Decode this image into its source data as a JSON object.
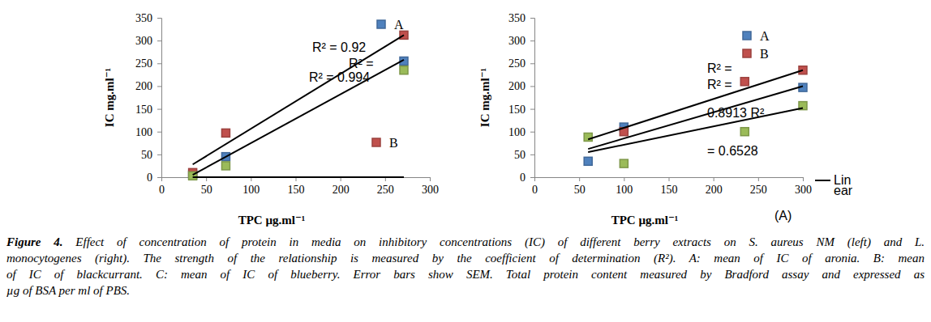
{
  "chart_data": [
    {
      "type": "scatter",
      "xlabel": "TPC µg.ml⁻¹",
      "ylabel": "IC mg.ml⁻¹",
      "xlim": [
        0,
        300
      ],
      "xticks": [
        0,
        50,
        100,
        150,
        200,
        250,
        300
      ],
      "ylim": [
        0,
        350
      ],
      "yticks": [
        0,
        50,
        100,
        150,
        200,
        250,
        300,
        350
      ],
      "grid": false,
      "marker": "square",
      "series": [
        {
          "name": "A",
          "color": "#4f81bd",
          "x": [
            35,
            72,
            271
          ],
          "values": [
            5,
            45,
            255
          ]
        },
        {
          "name": "B",
          "color": "#c0504d",
          "x": [
            35,
            72,
            271
          ],
          "values": [
            10,
            97,
            312
          ]
        },
        {
          "color": "#9bbb59",
          "x": [
            35,
            72,
            271
          ],
          "values": [
            3,
            25,
            235
          ]
        },
        {
          "type": "line",
          "color": "#000000",
          "x": [
            35,
            271
          ],
          "values": [
            28,
            312
          ]
        },
        {
          "type": "line",
          "color": "#000000",
          "x": [
            35,
            271
          ],
          "values": [
            5,
            258
          ]
        },
        {
          "type": "line",
          "color": "#000000",
          "x": [
            35,
            271
          ],
          "values": [
            0,
            0
          ]
        }
      ],
      "annotations": [
        "R² = 0.92",
        "R² =",
        "R² = 0.994"
      ]
    },
    {
      "type": "scatter",
      "xlabel": "TPC µg.ml⁻¹",
      "ylabel": "IC mg.ml⁻¹",
      "xlim": [
        0,
        300
      ],
      "xticks": [
        0,
        50,
        100,
        150,
        200,
        250,
        300
      ],
      "ylim": [
        0,
        350
      ],
      "yticks": [
        0,
        50,
        100,
        150,
        200,
        250,
        300,
        350
      ],
      "grid": false,
      "marker": "square",
      "series": [
        {
          "name": "A",
          "color": "#4f81bd",
          "x": [
            60,
            100,
            300
          ],
          "values": [
            35,
            110,
            197
          ]
        },
        {
          "name": "B",
          "color": "#c0504d",
          "x": [
            100,
            235,
            300
          ],
          "values": [
            100,
            210,
            235
          ]
        },
        {
          "color": "#9bbb59",
          "x": [
            60,
            100,
            235,
            300
          ],
          "values": [
            88,
            30,
            100,
            157
          ]
        },
        {
          "type": "line",
          "color": "#000000",
          "x": [
            60,
            300
          ],
          "values": [
            83,
            235
          ]
        },
        {
          "type": "line",
          "color": "#000000",
          "x": [
            60,
            300
          ],
          "values": [
            62,
            200
          ]
        },
        {
          "type": "line",
          "color": "#000000",
          "x": [
            60,
            300
          ],
          "values": [
            55,
            152
          ]
        }
      ],
      "annotations": [
        "R² =",
        "R² =",
        "0.8913 R²",
        "= 0.6528",
        "Lin",
        "ear",
        "(A)"
      ]
    }
  ],
  "caption": {
    "label": "Figure 4.",
    "lines": [
      "Effect of concentration of protein in media on inhibitory concentrations (IC) of different berry extracts on S. aureus NM (left) and L.",
      "monocytogenes (right). The strength of the relationship is measured by the coefficient of determination (R²). A: mean of IC of aronia. B: mean",
      "of IC of blackcurrant. C: mean of IC of blueberry. Error bars show SEM. Total protein content measured by Bradford assay and expressed as",
      "µg of BSA per ml of PBS."
    ]
  }
}
